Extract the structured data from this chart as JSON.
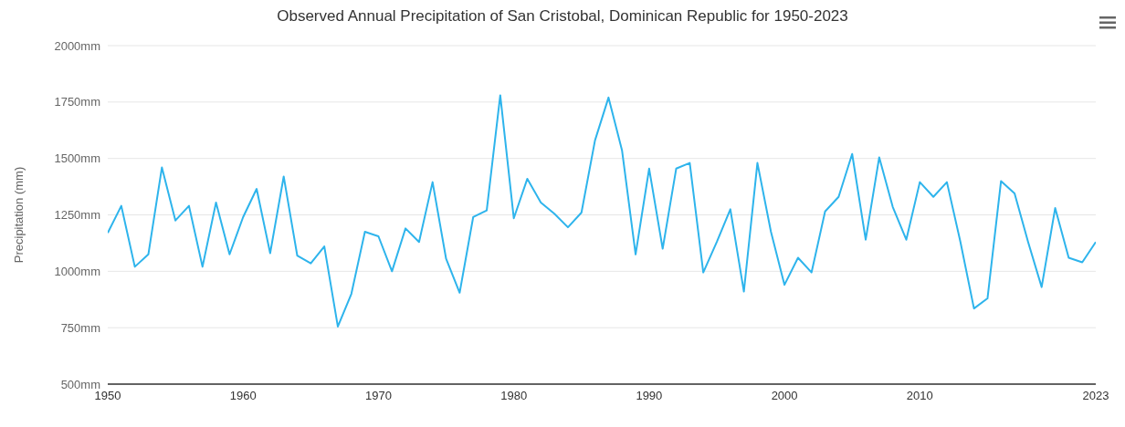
{
  "chart_data": {
    "type": "line",
    "title": "Observed Annual Precipitation of San Cristobal, Dominican Republic for 1950-2023",
    "ylabel": "Precipitation (mm)",
    "x": [
      1950,
      1951,
      1952,
      1953,
      1954,
      1955,
      1956,
      1957,
      1958,
      1959,
      1960,
      1961,
      1962,
      1963,
      1964,
      1965,
      1966,
      1967,
      1968,
      1969,
      1970,
      1971,
      1972,
      1973,
      1974,
      1975,
      1976,
      1977,
      1978,
      1979,
      1980,
      1981,
      1982,
      1983,
      1984,
      1985,
      1986,
      1987,
      1988,
      1989,
      1990,
      1991,
      1992,
      1993,
      1994,
      1995,
      1996,
      1997,
      1998,
      1999,
      2000,
      2001,
      2002,
      2003,
      2004,
      2005,
      2006,
      2007,
      2008,
      2009,
      2010,
      2011,
      2012,
      2013,
      2014,
      2015,
      2016,
      2017,
      2018,
      2019,
      2020,
      2021,
      2022,
      2023
    ],
    "series": [
      {
        "color": "#2eb4ec",
        "values": [
          1170,
          1290,
          1020,
          1075,
          1460,
          1225,
          1290,
          1020,
          1305,
          1075,
          1240,
          1365,
          1080,
          1420,
          1070,
          1035,
          1110,
          755,
          900,
          1175,
          1155,
          1000,
          1190,
          1130,
          1395,
          1055,
          905,
          1240,
          1270,
          1780,
          1235,
          1410,
          1305,
          1255,
          1195,
          1260,
          1580,
          1770,
          1535,
          1075,
          1455,
          1100,
          1455,
          1480,
          995,
          1130,
          1275,
          910,
          1480,
          1175,
          940,
          1060,
          995,
          1265,
          1330,
          1520,
          1140,
          1505,
          1285,
          1140,
          1395,
          1330,
          1395,
          1130,
          835,
          880,
          1400,
          1345,
          1130,
          930,
          1280,
          1060,
          1040,
          1130
        ]
      }
    ],
    "xlim": [
      1950,
      2023
    ],
    "xticks": [
      1950,
      1960,
      1970,
      1980,
      1990,
      2000,
      2010,
      2023
    ],
    "ylim": [
      500,
      2000
    ],
    "yticks": [
      {
        "value": 500,
        "label": "500mm"
      },
      {
        "value": 750,
        "label": "750mm"
      },
      {
        "value": 1000,
        "label": "1000mm"
      },
      {
        "value": 1250,
        "label": "1250mm"
      },
      {
        "value": 1500,
        "label": "1500mm"
      },
      {
        "value": 1750,
        "label": "1750mm"
      },
      {
        "value": 2000,
        "label": "2000mm"
      }
    ],
    "grid": "y",
    "legend": false,
    "marker": "none",
    "line_style": "solid"
  }
}
